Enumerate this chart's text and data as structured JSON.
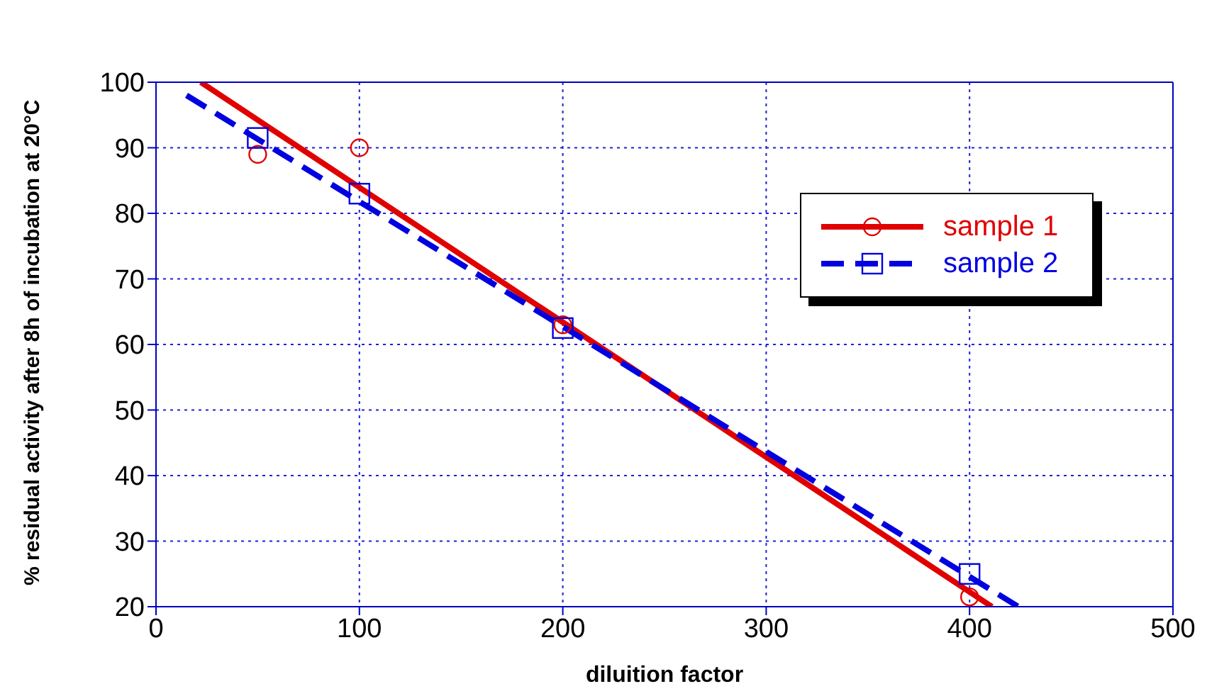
{
  "chart_data": {
    "type": "scatter",
    "xlabel": "diluition factor",
    "ylabel": "% residual activity after 8h of incubation at 20°C",
    "xlim": [
      0,
      500
    ],
    "xticks": [
      0,
      100,
      200,
      300,
      400,
      500
    ],
    "ylim": [
      20,
      100
    ],
    "yticks": [
      20,
      30,
      40,
      50,
      60,
      70,
      80,
      90,
      100
    ],
    "grid": true,
    "legend": "top right",
    "series": [
      {
        "name": "sample 1",
        "marker": "circle",
        "color": "#e00000",
        "x": [
          50,
          100,
          200,
          400
        ],
        "values": [
          89,
          90,
          63,
          21.5
        ]
      },
      {
        "name": "sample 2",
        "marker": "square",
        "color": "#0000e0",
        "x": [
          50,
          100,
          200,
          400
        ],
        "values": [
          91.5,
          83,
          62.5,
          25
        ]
      },
      {
        "type": "line",
        "color": "#e00000",
        "line_style": "solid",
        "x": [
          22,
          411
        ],
        "values": [
          100,
          20
        ]
      },
      {
        "type": "line",
        "color": "#0000e0",
        "line_style": "dashed",
        "x": [
          15,
          424
        ],
        "values": [
          98,
          20
        ]
      }
    ]
  }
}
